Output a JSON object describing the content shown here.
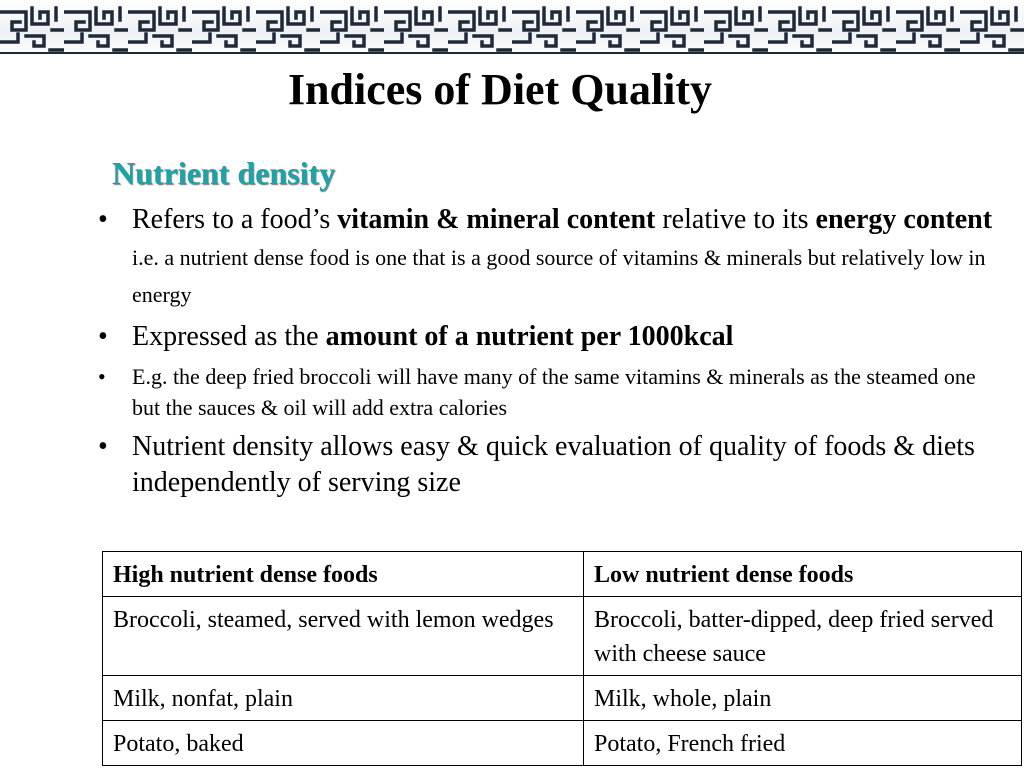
{
  "slide": {
    "title": "Indices of Diet Quality",
    "subtitle": "Nutrient density",
    "bullets": [
      {
        "b1_pre": "Refers to a food’s ",
        "b1_bold1": "vitamin & mineral content",
        "b1_mid": " relative to its ",
        "b1_bold2": "energy content",
        "b1_post": " i.e. a nutrient dense food is one that is a good source of vitamins & minerals but relatively low in energy"
      },
      {
        "b2_pre": "Expressed as the ",
        "b2_bold": "amount of a nutrient per 1000kcal"
      },
      {
        "b3_text": "E.g. the deep fried broccoli will have many of the same vitamins & minerals as the steamed one but the sauces & oil will add extra calories"
      },
      {
        "b4_text": "Nutrient density allows easy & quick evaluation of quality of foods & diets independently of serving size"
      }
    ]
  },
  "table": {
    "headers": [
      "High nutrient dense foods",
      "Low nutrient dense foods"
    ],
    "rows": [
      [
        "Broccoli, steamed, served with lemon wedges",
        "Broccoli, batter-dipped, deep fried served with cheese sauce"
      ],
      [
        "Milk, nonfat, plain",
        "Milk, whole, plain"
      ],
      [
        "Potato, baked",
        "Potato, French fried"
      ]
    ]
  },
  "style": {
    "subtitle_color": "#1aa3a8",
    "border_color": "#1f2a38",
    "border_icon": "chinese-lattice-border"
  }
}
